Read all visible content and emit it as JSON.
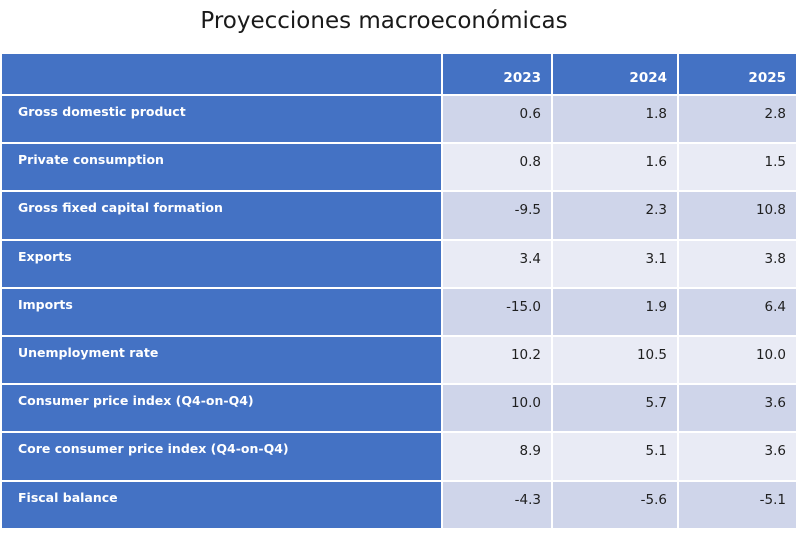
{
  "title": "Proyecciones macroeconómicas",
  "chart_data": {
    "type": "table",
    "title": "Proyecciones macroeconómicas",
    "columns": [
      "2023",
      "2024",
      "2025"
    ],
    "rows": [
      {
        "label": "Gross domestic product",
        "values": [
          "0.6",
          "1.8",
          "2.8"
        ]
      },
      {
        "label": "Private consumption",
        "values": [
          "0.8",
          "1.6",
          "1.5"
        ]
      },
      {
        "label": "Gross fixed capital formation",
        "values": [
          "-9.5",
          "2.3",
          "10.8"
        ]
      },
      {
        "label": "Exports",
        "values": [
          "3.4",
          "3.1",
          "3.8"
        ]
      },
      {
        "label": "Imports",
        "values": [
          "-15.0",
          "1.9",
          "6.4"
        ]
      },
      {
        "label": "Unemployment rate",
        "values": [
          "10.2",
          "10.5",
          "10.0"
        ]
      },
      {
        "label": "Consumer price index (Q4-on-Q4)",
        "values": [
          "10.0",
          "5.7",
          "3.6"
        ]
      },
      {
        "label": "Core consumer price index (Q4-on-Q4)",
        "values": [
          "8.9",
          "5.1",
          "3.6"
        ]
      },
      {
        "label": "Fiscal balance",
        "values": [
          "-4.3",
          "-5.6",
          "-5.1"
        ]
      }
    ]
  },
  "colors": {
    "header_bg": "#4472c4",
    "band_dark": "#cfd5ea",
    "band_light": "#e9ebf5",
    "header_text": "#ffffff"
  }
}
